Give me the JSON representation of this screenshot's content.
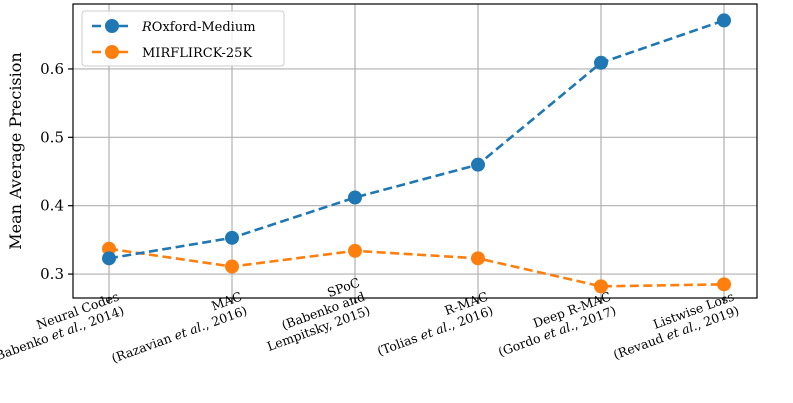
{
  "chart_data": {
    "type": "line",
    "title": "",
    "xlabel": "",
    "ylabel": "Mean Average Precision",
    "ylim": [
      0.265,
      0.695
    ],
    "yticks": [
      0.3,
      0.4,
      0.5,
      0.6
    ],
    "ytick_labels": [
      "0.3",
      "0.4",
      "0.5",
      "0.6"
    ],
    "grid": true,
    "legend_position": "top-left",
    "categories": [
      {
        "lines": [
          [
            {
              "t": "Neural Codes"
            }
          ],
          [
            {
              "t": "(Babenko "
            },
            {
              "t": "et al.",
              "i": true
            },
            {
              "t": ", 2014)"
            }
          ]
        ]
      },
      {
        "lines": [
          [
            {
              "t": "MAC"
            }
          ],
          [
            {
              "t": "(Razavian "
            },
            {
              "t": "et al.",
              "i": true
            },
            {
              "t": ", 2016)"
            }
          ]
        ]
      },
      {
        "lines": [
          [
            {
              "t": "SPoC"
            }
          ],
          [
            {
              "t": "(Babenko and"
            }
          ],
          [
            {
              "t": "Lempitsky, 2015)"
            }
          ]
        ]
      },
      {
        "lines": [
          [
            {
              "t": "R-MAC"
            }
          ],
          [
            {
              "t": "(Tolias "
            },
            {
              "t": "et al.",
              "i": true
            },
            {
              "t": ", 2016)"
            }
          ]
        ]
      },
      {
        "lines": [
          [
            {
              "t": "Deep R-MAC"
            }
          ],
          [
            {
              "t": "(Gordo "
            },
            {
              "t": "et al.",
              "i": true
            },
            {
              "t": ", 2017)"
            }
          ]
        ]
      },
      {
        "lines": [
          [
            {
              "t": "Listwise Loss"
            }
          ],
          [
            {
              "t": "(Revaud "
            },
            {
              "t": "et al.",
              "i": true
            },
            {
              "t": ", 2019)"
            }
          ]
        ]
      }
    ],
    "series": [
      {
        "name_parts": [
          {
            "t": "R",
            "script": true
          },
          {
            "t": "Oxford-Medium"
          }
        ],
        "color": "#1f77b4",
        "values": [
          0.323,
          0.353,
          0.412,
          0.46,
          0.609,
          0.671
        ]
      },
      {
        "name_parts": [
          {
            "t": "MIRFLIRCK-25K"
          }
        ],
        "color": "#ff7f0e",
        "values": [
          0.337,
          0.311,
          0.334,
          0.323,
          0.282,
          0.285
        ]
      }
    ]
  }
}
